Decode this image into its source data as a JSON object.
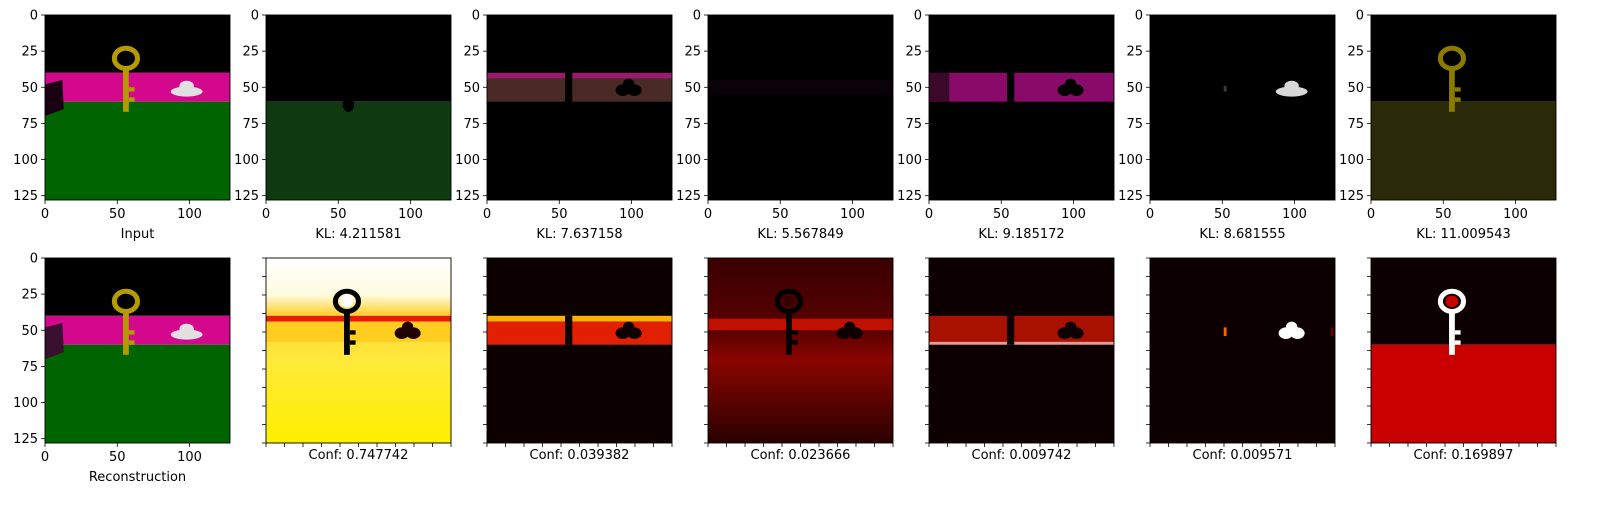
{
  "figure": {
    "panel_ticks": [
      0,
      25,
      50,
      75,
      100,
      125
    ],
    "x_tick_labels": [
      "0",
      "50",
      "100"
    ],
    "y_tick_labels": [
      "0",
      "25",
      "50",
      "75",
      "100",
      "125"
    ]
  },
  "chart_data": {
    "type": "heatmap",
    "image_extent": [
      0,
      128
    ],
    "rows": [
      {
        "name": "row-1",
        "panels": [
          {
            "caption": "Input",
            "kind": "input"
          },
          {
            "caption": "KL: 4.211581",
            "kind": "slot-1"
          },
          {
            "caption": "KL: 7.637158",
            "kind": "slot-2"
          },
          {
            "caption": "KL: 5.567849",
            "kind": "slot-3"
          },
          {
            "caption": "KL: 9.185172",
            "kind": "slot-4"
          },
          {
            "caption": "KL: 8.681555",
            "kind": "slot-5"
          },
          {
            "caption": "KL: 11.009543",
            "kind": "slot-6"
          }
        ]
      },
      {
        "name": "row-2",
        "panels": [
          {
            "caption": "Reconstruction",
            "kind": "recon"
          },
          {
            "caption": "Conf: 0.747742",
            "kind": "conf-1"
          },
          {
            "caption": "Conf: 0.039382",
            "kind": "conf-2"
          },
          {
            "caption": "Conf: 0.023666",
            "kind": "conf-3"
          },
          {
            "caption": "Conf: 0.009742",
            "kind": "conf-4"
          },
          {
            "caption": "Conf: 0.009571",
            "kind": "conf-5"
          },
          {
            "caption": "Conf: 0.169897",
            "kind": "conf-6"
          }
        ]
      }
    ],
    "colors": {
      "sky": "#000000",
      "wall": "#d4088c",
      "floor": "#006400",
      "key": "#b59a00",
      "car": "#e0e0e0",
      "heat_low": "#0d0000",
      "heat_mid": "#d50000",
      "heat_high": "#ffff00",
      "heat_max": "#ffffff"
    }
  }
}
